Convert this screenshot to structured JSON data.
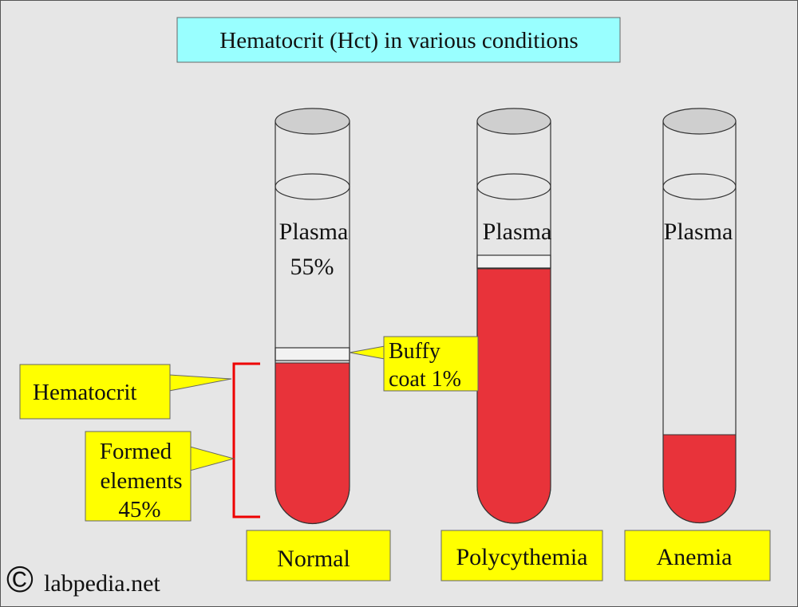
{
  "title": "Hematocrit (Hct) in various conditions",
  "tubes": [
    {
      "label": "Normal",
      "plasma": "Plasma",
      "plasma_percent": "55%"
    },
    {
      "label": "Polycythemia",
      "plasma": "Plasma"
    },
    {
      "label": "Anemia",
      "plasma": "Plasma"
    }
  ],
  "callouts": {
    "buffy_coat": [
      "Buffy",
      "coat 1%"
    ],
    "hematocrit": "Hematocrit",
    "formed_elements": [
      "Formed",
      "elements",
      "45%"
    ]
  },
  "footer": {
    "symbol": "©",
    "site": "labpedia.net"
  }
}
